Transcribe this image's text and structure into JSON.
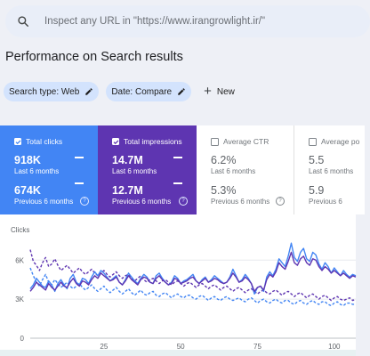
{
  "search": {
    "placeholder": "Inspect any URL in \"https://www.irangrowlight.ir/\""
  },
  "page_title": "Performance on Search results",
  "filters": [
    {
      "label": "Search type: Web"
    },
    {
      "label": "Date: Compare"
    }
  ],
  "new_label": "New",
  "cards": [
    {
      "label": "Total clicks",
      "checked": true,
      "value": "918K",
      "period": "Last 6 months",
      "value2": "674K",
      "period2": "Previous 6 months",
      "color": "#4285f4"
    },
    {
      "label": "Total impressions",
      "checked": true,
      "value": "14.7M",
      "period": "Last 6 months",
      "value2": "12.7M",
      "period2": "Previous 6 months",
      "color": "#5e35b1"
    },
    {
      "label": "Average CTR",
      "checked": false,
      "value": "6.2%",
      "period": "Last 6 months",
      "value2": "5.3%",
      "period2": "Previous 6 months"
    },
    {
      "label": "Average po",
      "checked": false,
      "value": "5.5",
      "period": "Last 6 months",
      "value2": "5.9",
      "period2": "Previous 6"
    }
  ],
  "chart_data": {
    "type": "line",
    "ylabel": "Clicks",
    "yticks": [
      "6K",
      "3K",
      "0"
    ],
    "ylim": [
      0,
      8000
    ],
    "xticks": [
      25,
      50,
      75,
      100
    ],
    "xlim": [
      1,
      107
    ],
    "grid": true,
    "series": [
      {
        "style": "solid",
        "color": "#4285f4",
        "values": [
          3800,
          4100,
          4600,
          4300,
          4000,
          3900,
          4400,
          4100,
          3600,
          4200,
          4500,
          4100,
          3800,
          4600,
          4900,
          4300,
          4100,
          4600,
          4500,
          4200,
          4700,
          5100,
          4800,
          5200,
          5000,
          4700,
          4400,
          4600,
          4800,
          4300,
          4100,
          4500,
          5000,
          4700,
          4400,
          4200,
          4600,
          4900,
          4700,
          4300,
          4200,
          4800,
          5000,
          4600,
          4300,
          4100,
          4300,
          4800,
          4600,
          4200,
          4400,
          4500,
          4700,
          4900,
          4400,
          4200,
          4500,
          4700,
          4300,
          4500,
          4800,
          4600,
          4400,
          4200,
          4300,
          4700,
          5300,
          4800,
          4300,
          4500,
          4900,
          4600,
          4200,
          3400,
          3900,
          4000,
          3600,
          4700,
          5100,
          4800,
          5300,
          6100,
          5800,
          5500,
          6300,
          7300,
          6200,
          5900,
          6600,
          6900,
          6100,
          5900,
          6600,
          6400,
          5700,
          5300,
          5800,
          5500,
          5000,
          5400,
          5100,
          4800,
          5200,
          4900,
          4700,
          4900,
          4800
        ]
      },
      {
        "style": "solid",
        "color": "#5e35b1",
        "values": [
          3600,
          3900,
          4300,
          4100,
          3900,
          3700,
          4200,
          3900,
          3700,
          4000,
          4300,
          4000,
          3900,
          4300,
          4600,
          4200,
          4000,
          4400,
          4300,
          4100,
          4500,
          4800,
          4600,
          5000,
          4800,
          4600,
          4400,
          4500,
          4700,
          4300,
          4100,
          4400,
          4800,
          4500,
          4300,
          4100,
          4500,
          4700,
          4600,
          4300,
          4200,
          4600,
          4800,
          4500,
          4300,
          4100,
          4200,
          4600,
          4500,
          4200,
          4300,
          4400,
          4600,
          4700,
          4400,
          4200,
          4400,
          4600,
          4300,
          4400,
          4600,
          4500,
          4300,
          4200,
          4300,
          4600,
          5000,
          4700,
          4300,
          4400,
          4700,
          4500,
          4200,
          3600,
          3900,
          4000,
          3700,
          4500,
          4900,
          4700,
          5100,
          5800,
          5500,
          5300,
          5900,
          6600,
          5800,
          5600,
          6100,
          6300,
          5800,
          5600,
          6100,
          6000,
          5500,
          5200,
          5500,
          5300,
          5000,
          5200,
          5000,
          4800,
          5000,
          4800,
          4600,
          4800,
          4700
        ]
      },
      {
        "style": "dashed",
        "color": "#5e35b1",
        "values": [
          6800,
          5900,
          5600,
          5200,
          5800,
          6200,
          5500,
          5700,
          6100,
          5600,
          5200,
          5400,
          5600,
          5300,
          5000,
          5200,
          5400,
          5100,
          4900,
          5100,
          5300,
          5000,
          4800,
          5000,
          5200,
          4900,
          4700,
          4900,
          5100,
          4800,
          4600,
          4800,
          4900,
          4600,
          4400,
          4600,
          4800,
          4500,
          4300,
          4500,
          4600,
          4400,
          4200,
          4400,
          4500,
          4300,
          4100,
          4300,
          4400,
          4200,
          4000,
          4200,
          4300,
          4100,
          3900,
          4100,
          4200,
          4000,
          3800,
          4000,
          4100,
          3900,
          3700,
          3900,
          4000,
          3800,
          3600,
          3800,
          3900,
          3700,
          3500,
          3700,
          3800,
          3600,
          3400,
          3600,
          3700,
          3500,
          3400,
          3600,
          3700,
          3500,
          3300,
          3500,
          3600,
          3400,
          3200,
          3400,
          3500,
          3300,
          3100,
          3300,
          3400,
          3200,
          3000,
          3200,
          3300,
          3100,
          2900,
          3100,
          3200,
          3000,
          2900,
          3000,
          3100,
          2900,
          3000
        ]
      },
      {
        "style": "dashed",
        "color": "#4285f4",
        "values": [
          5400,
          4800,
          4300,
          4000,
          4500,
          4900,
          4300,
          4100,
          4500,
          4200,
          3900,
          4100,
          4300,
          4000,
          3800,
          4000,
          4200,
          3900,
          3700,
          3900,
          4100,
          3800,
          3600,
          3800,
          4000,
          3700,
          3500,
          3700,
          3900,
          3600,
          3400,
          3600,
          3800,
          3500,
          3300,
          3500,
          3700,
          3400,
          3300,
          3500,
          3600,
          3300,
          3200,
          3400,
          3500,
          3300,
          3100,
          3300,
          3400,
          3200,
          3100,
          3300,
          3300,
          3100,
          3000,
          3200,
          3300,
          3100,
          2900,
          3100,
          3200,
          3000,
          2900,
          3100,
          3200,
          3000,
          2900,
          3000,
          3100,
          2900,
          2800,
          3000,
          3100,
          2900,
          2700,
          2900,
          3000,
          2800,
          2700,
          2900,
          3000,
          2800,
          2700,
          2900,
          2900,
          2700,
          2600,
          2800,
          2900,
          2700,
          2600,
          2800,
          2900,
          2700,
          2600,
          2800,
          2800,
          2600,
          2500,
          2700,
          2800,
          2600,
          2500,
          2700,
          2700,
          2600,
          2600
        ]
      }
    ]
  }
}
